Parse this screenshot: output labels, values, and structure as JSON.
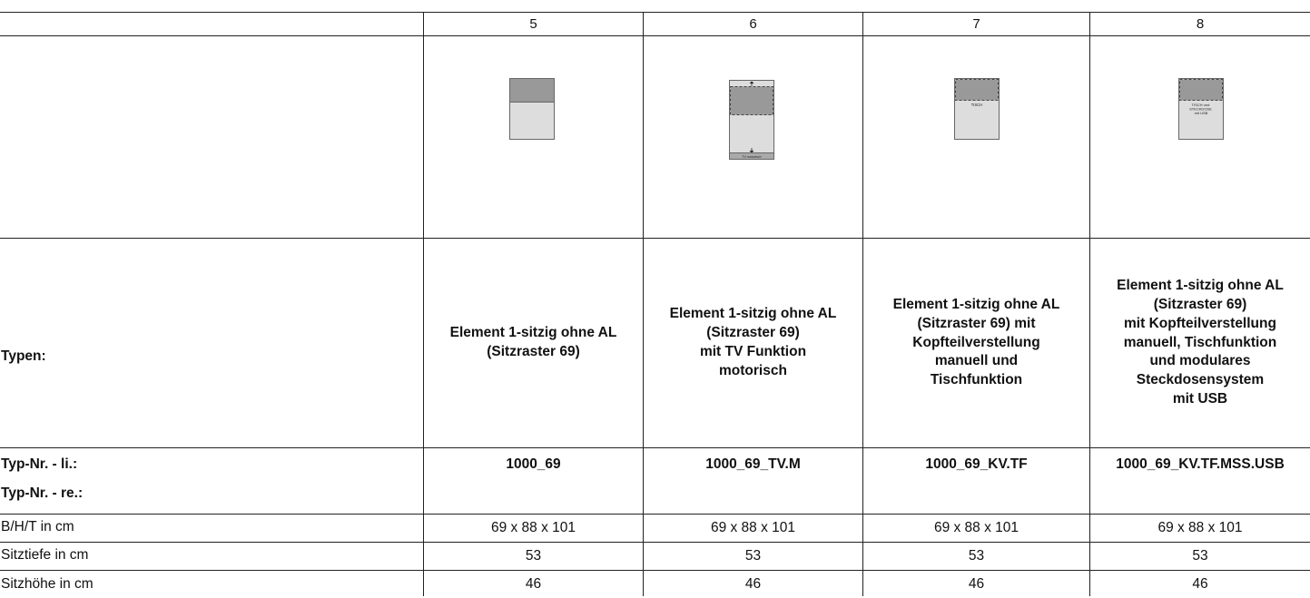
{
  "columns": [
    "5",
    "6",
    "7",
    "8"
  ],
  "row_labels": {
    "types": "Typen:",
    "typ_li": "Typ-Nr. - li.:",
    "typ_re": "Typ-Nr. - re.:",
    "bht": "B/H/T in cm",
    "sitztiefe": "Sitztiefe in cm",
    "sitzhoehe": "Sitzhöhe in cm"
  },
  "types": [
    [
      "Element 1-sitzig ohne AL",
      "(Sitzraster 69)"
    ],
    [
      "Element 1-sitzig ohne AL",
      "(Sitzraster 69)",
      "mit TV Funktion",
      "motorisch"
    ],
    [
      "Element 1-sitzig ohne AL",
      "(Sitzraster 69) mit",
      "Kopfteilverstellung",
      "manuell und",
      "Tischfunktion"
    ],
    [
      "Element 1-sitzig ohne AL",
      "(Sitzraster 69)",
      "mit Kopfteilverstellung",
      "manuell, Tischfunktion",
      "und modulares",
      "Steckdosensystem",
      "mit USB"
    ]
  ],
  "typ_nr_li": [
    "1000_69",
    "1000_69_TV.M",
    "1000_69_KV.TF",
    "1000_69_KV.TF.MSS.USB"
  ],
  "bht": [
    "69 x 88 x 101",
    "69 x 88 x 101",
    "69 x 88 x 101",
    "69 x 88 x 101"
  ],
  "sitztiefe": [
    "53",
    "53",
    "53",
    "53"
  ],
  "sitzhoehe": [
    "46",
    "46",
    "46",
    "46"
  ],
  "icons": {
    "col6_bottom": "TV motorisch",
    "col7_label": "TISCH",
    "col8_label": [
      "TISCH und",
      "STECKDOSE",
      "mit USB"
    ]
  }
}
